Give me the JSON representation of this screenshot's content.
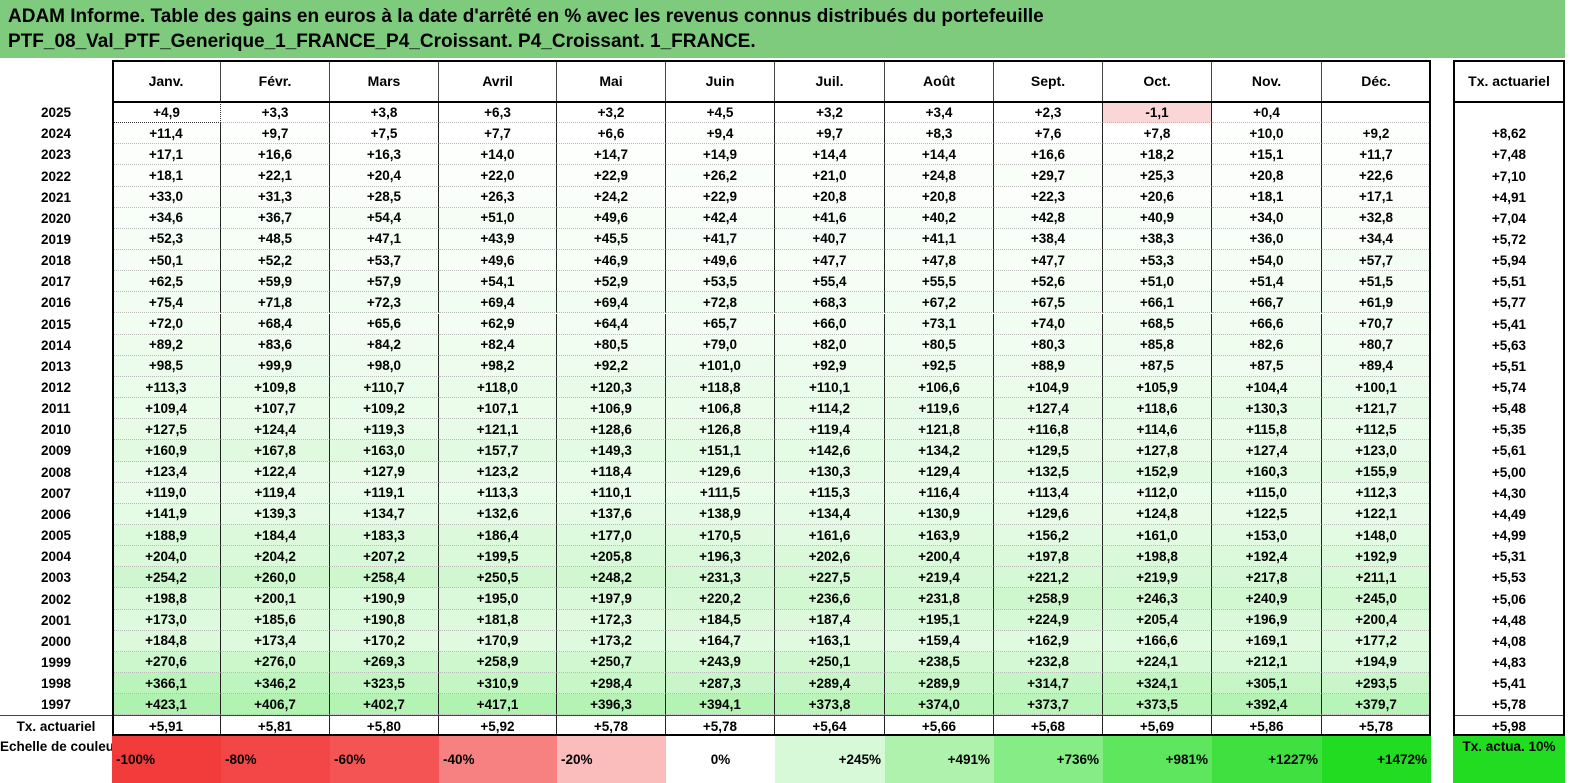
{
  "title": {
    "line1": "ADAM Informe. Table des gains en euros à la date d'arrêté en % avec les revenus connus distribués du portefeuille",
    "line2": "PTF_08_Val_PTF_Generique_1_FRANCE_P4_Croissant. P4_Croissant. 1_FRANCE."
  },
  "months": [
    "Janv.",
    "Févr.",
    "Mars",
    "Avril",
    "Mai",
    "Juin",
    "Juil.",
    "Août",
    "Sept.",
    "Oct.",
    "Nov.",
    "Déc."
  ],
  "tx_header": "Tx. actuariel",
  "rows": [
    {
      "year": "2025",
      "values": [
        "+4,9",
        "+3,3",
        "+3,8",
        "+6,3",
        "+3,2",
        "+4,5",
        "+3,2",
        "+3,4",
        "+2,3",
        "-1,1",
        "+0,4",
        ""
      ],
      "tx": ""
    },
    {
      "year": "2024",
      "values": [
        "+11,4",
        "+9,7",
        "+7,5",
        "+7,7",
        "+6,6",
        "+9,4",
        "+9,7",
        "+8,3",
        "+7,6",
        "+7,8",
        "+10,0",
        "+9,2"
      ],
      "tx": "+8,62"
    },
    {
      "year": "2023",
      "values": [
        "+17,1",
        "+16,6",
        "+16,3",
        "+14,0",
        "+14,7",
        "+14,9",
        "+14,4",
        "+14,4",
        "+16,6",
        "+18,2",
        "+15,1",
        "+11,7"
      ],
      "tx": "+7,48"
    },
    {
      "year": "2022",
      "values": [
        "+18,1",
        "+22,1",
        "+20,4",
        "+22,0",
        "+22,9",
        "+26,2",
        "+21,0",
        "+24,8",
        "+29,7",
        "+25,3",
        "+20,8",
        "+22,6"
      ],
      "tx": "+7,10"
    },
    {
      "year": "2021",
      "values": [
        "+33,0",
        "+31,3",
        "+28,5",
        "+26,3",
        "+24,2",
        "+22,9",
        "+20,8",
        "+20,8",
        "+22,3",
        "+20,6",
        "+18,1",
        "+17,1"
      ],
      "tx": "+4,91"
    },
    {
      "year": "2020",
      "values": [
        "+34,6",
        "+36,7",
        "+54,4",
        "+51,0",
        "+49,6",
        "+42,4",
        "+41,6",
        "+40,2",
        "+42,8",
        "+40,9",
        "+34,0",
        "+32,8"
      ],
      "tx": "+7,04"
    },
    {
      "year": "2019",
      "values": [
        "+52,3",
        "+48,5",
        "+47,1",
        "+43,9",
        "+45,5",
        "+41,7",
        "+40,7",
        "+41,1",
        "+38,4",
        "+38,3",
        "+36,0",
        "+34,4"
      ],
      "tx": "+5,72"
    },
    {
      "year": "2018",
      "values": [
        "+50,1",
        "+52,2",
        "+53,7",
        "+49,6",
        "+46,9",
        "+49,6",
        "+47,7",
        "+47,8",
        "+47,7",
        "+53,3",
        "+54,0",
        "+57,7"
      ],
      "tx": "+5,94"
    },
    {
      "year": "2017",
      "values": [
        "+62,5",
        "+59,9",
        "+57,9",
        "+54,1",
        "+52,9",
        "+53,5",
        "+55,4",
        "+55,5",
        "+52,6",
        "+51,0",
        "+51,4",
        "+51,5"
      ],
      "tx": "+5,51"
    },
    {
      "year": "2016",
      "values": [
        "+75,4",
        "+71,8",
        "+72,3",
        "+69,4",
        "+69,4",
        "+72,8",
        "+68,3",
        "+67,2",
        "+67,5",
        "+66,1",
        "+66,7",
        "+61,9"
      ],
      "tx": "+5,77"
    },
    {
      "year": "2015",
      "values": [
        "+72,0",
        "+68,4",
        "+65,6",
        "+62,9",
        "+64,4",
        "+65,7",
        "+66,0",
        "+73,1",
        "+74,0",
        "+68,5",
        "+66,6",
        "+70,7"
      ],
      "tx": "+5,41"
    },
    {
      "year": "2014",
      "values": [
        "+89,2",
        "+83,6",
        "+84,2",
        "+82,4",
        "+80,5",
        "+79,0",
        "+82,0",
        "+80,5",
        "+80,3",
        "+85,8",
        "+82,6",
        "+80,7"
      ],
      "tx": "+5,63"
    },
    {
      "year": "2013",
      "values": [
        "+98,5",
        "+99,9",
        "+98,0",
        "+98,2",
        "+92,2",
        "+101,0",
        "+92,9",
        "+92,5",
        "+88,9",
        "+87,5",
        "+87,5",
        "+89,4"
      ],
      "tx": "+5,51"
    },
    {
      "year": "2012",
      "values": [
        "+113,3",
        "+109,8",
        "+110,7",
        "+118,0",
        "+120,3",
        "+118,8",
        "+110,1",
        "+106,6",
        "+104,9",
        "+105,9",
        "+104,4",
        "+100,1"
      ],
      "tx": "+5,74"
    },
    {
      "year": "2011",
      "values": [
        "+109,4",
        "+107,7",
        "+109,2",
        "+107,1",
        "+106,9",
        "+106,8",
        "+114,2",
        "+119,6",
        "+127,4",
        "+118,6",
        "+130,3",
        "+121,7"
      ],
      "tx": "+5,48"
    },
    {
      "year": "2010",
      "values": [
        "+127,5",
        "+124,4",
        "+119,3",
        "+121,1",
        "+128,6",
        "+126,8",
        "+119,4",
        "+121,8",
        "+116,8",
        "+114,6",
        "+115,8",
        "+112,5"
      ],
      "tx": "+5,35"
    },
    {
      "year": "2009",
      "values": [
        "+160,9",
        "+167,8",
        "+163,0",
        "+157,7",
        "+149,3",
        "+151,1",
        "+142,6",
        "+134,2",
        "+129,5",
        "+127,8",
        "+127,4",
        "+123,0"
      ],
      "tx": "+5,61"
    },
    {
      "year": "2008",
      "values": [
        "+123,4",
        "+122,4",
        "+127,9",
        "+123,2",
        "+118,4",
        "+129,6",
        "+130,3",
        "+129,4",
        "+132,5",
        "+152,9",
        "+160,3",
        "+155,9"
      ],
      "tx": "+5,00"
    },
    {
      "year": "2007",
      "values": [
        "+119,0",
        "+119,4",
        "+119,1",
        "+113,3",
        "+110,1",
        "+111,5",
        "+115,3",
        "+116,4",
        "+113,4",
        "+112,0",
        "+115,0",
        "+112,3"
      ],
      "tx": "+4,30"
    },
    {
      "year": "2006",
      "values": [
        "+141,9",
        "+139,3",
        "+134,7",
        "+132,6",
        "+137,6",
        "+138,9",
        "+134,4",
        "+130,9",
        "+129,6",
        "+124,8",
        "+122,5",
        "+122,1"
      ],
      "tx": "+4,49"
    },
    {
      "year": "2005",
      "values": [
        "+188,9",
        "+184,4",
        "+183,3",
        "+186,4",
        "+177,0",
        "+170,5",
        "+161,6",
        "+163,9",
        "+156,2",
        "+161,0",
        "+153,0",
        "+148,0"
      ],
      "tx": "+4,99"
    },
    {
      "year": "2004",
      "values": [
        "+204,0",
        "+204,2",
        "+207,2",
        "+199,5",
        "+205,8",
        "+196,3",
        "+202,6",
        "+200,4",
        "+197,8",
        "+198,8",
        "+192,4",
        "+192,9"
      ],
      "tx": "+5,31"
    },
    {
      "year": "2003",
      "values": [
        "+254,2",
        "+260,0",
        "+258,4",
        "+250,5",
        "+248,2",
        "+231,3",
        "+227,5",
        "+219,4",
        "+221,2",
        "+219,9",
        "+217,8",
        "+211,1"
      ],
      "tx": "+5,53"
    },
    {
      "year": "2002",
      "values": [
        "+198,8",
        "+200,1",
        "+190,9",
        "+195,0",
        "+197,9",
        "+220,2",
        "+236,6",
        "+231,8",
        "+258,9",
        "+246,3",
        "+240,9",
        "+245,0"
      ],
      "tx": "+5,06"
    },
    {
      "year": "2001",
      "values": [
        "+173,0",
        "+185,6",
        "+190,8",
        "+181,8",
        "+172,3",
        "+184,5",
        "+187,4",
        "+195,1",
        "+224,9",
        "+205,4",
        "+196,9",
        "+200,4"
      ],
      "tx": "+4,48"
    },
    {
      "year": "2000",
      "values": [
        "+184,8",
        "+173,4",
        "+170,2",
        "+170,9",
        "+173,2",
        "+164,7",
        "+163,1",
        "+159,4",
        "+162,9",
        "+166,6",
        "+169,1",
        "+177,2"
      ],
      "tx": "+4,08"
    },
    {
      "year": "1999",
      "values": [
        "+270,6",
        "+276,0",
        "+269,3",
        "+258,9",
        "+250,7",
        "+243,9",
        "+250,1",
        "+238,5",
        "+232,8",
        "+224,1",
        "+212,1",
        "+194,9"
      ],
      "tx": "+4,83"
    },
    {
      "year": "1998",
      "values": [
        "+366,1",
        "+346,2",
        "+323,5",
        "+310,9",
        "+298,4",
        "+287,3",
        "+289,4",
        "+289,9",
        "+314,7",
        "+324,1",
        "+305,1",
        "+293,5"
      ],
      "tx": "+5,41"
    },
    {
      "year": "1997",
      "values": [
        "+423,1",
        "+406,7",
        "+402,7",
        "+417,1",
        "+396,3",
        "+394,1",
        "+373,8",
        "+374,0",
        "+373,7",
        "+373,5",
        "+392,4",
        "+379,7"
      ],
      "tx": "+5,78"
    }
  ],
  "tx_row": {
    "label": "Tx. actuariel",
    "values": [
      "+5,91",
      "+5,81",
      "+5,80",
      "+5,92",
      "+5,78",
      "+5,78",
      "+5,64",
      "+5,66",
      "+5,68",
      "+5,69",
      "+5,86",
      "+5,78"
    ],
    "tx": "+5,98"
  },
  "scale": {
    "label": "Echelle de couleur",
    "items": [
      {
        "text": "-100%",
        "color": "#f23c3c"
      },
      {
        "text": "-80%",
        "color": "#f34646"
      },
      {
        "text": "-60%",
        "color": "#f55454"
      },
      {
        "text": "-40%",
        "color": "#f78080"
      },
      {
        "text": "-20%",
        "color": "#fbbcbc"
      },
      {
        "text": "0%",
        "color": "#ffffff"
      },
      {
        "text": "+245%",
        "color": "#d7f9d7"
      },
      {
        "text": "+491%",
        "color": "#aef2ae"
      },
      {
        "text": "+736%",
        "color": "#86ec86"
      },
      {
        "text": "+981%",
        "color": "#5fe65f"
      },
      {
        "text": "+1227%",
        "color": "#3fe03f"
      },
      {
        "text": "+1472%",
        "color": "#22dc22"
      }
    ],
    "tx_label": "Tx. actua. 10%",
    "tx_color": "#22dc22"
  },
  "colors": {
    "title_bg": "#7ecb7e",
    "negative": "#fbd6d6",
    "cell_max": "#aef2ae"
  }
}
